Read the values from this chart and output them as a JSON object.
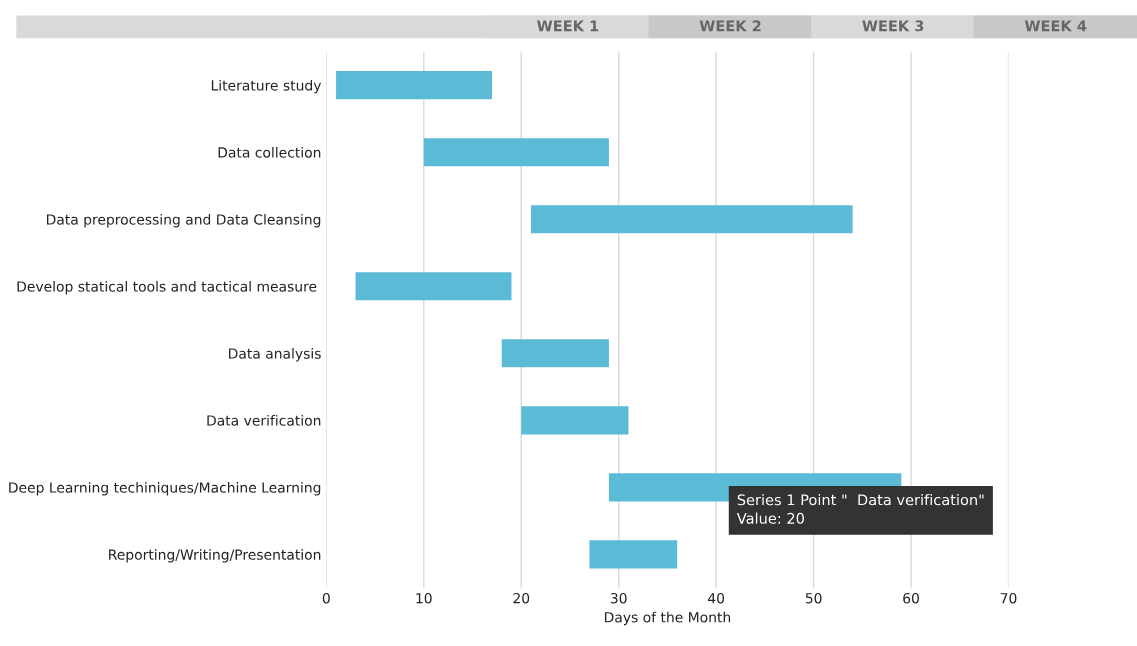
{
  "chart_data": {
    "type": "bar",
    "orientation": "horizontal",
    "xlabel": "Days of the Month",
    "categories": [
      "Literature study",
      "Data collection",
      "Data preprocessing and Data Cleansing",
      "Develop statical tools and tactical measure ",
      "Data analysis",
      "Data verification",
      "Deep Learning techiniques/Machine Learning",
      "Reporting/Writing/Presentation"
    ],
    "base": [
      1,
      10,
      21,
      3,
      18,
      20,
      29,
      27
    ],
    "values": [
      16,
      19,
      33,
      16,
      11,
      11,
      30,
      9
    ],
    "color": "#5bbad5",
    "xlim": [
      0,
      70
    ],
    "xticks": [
      0,
      10,
      20,
      30,
      40,
      50,
      60,
      70
    ],
    "grid": "x",
    "annotations": [
      "WEEK 1",
      "WEEK 2",
      "WEEK 3",
      "WEEK 4",
      "Series 1 Point \"  Data verification\"\nValue: 20"
    ]
  }
}
